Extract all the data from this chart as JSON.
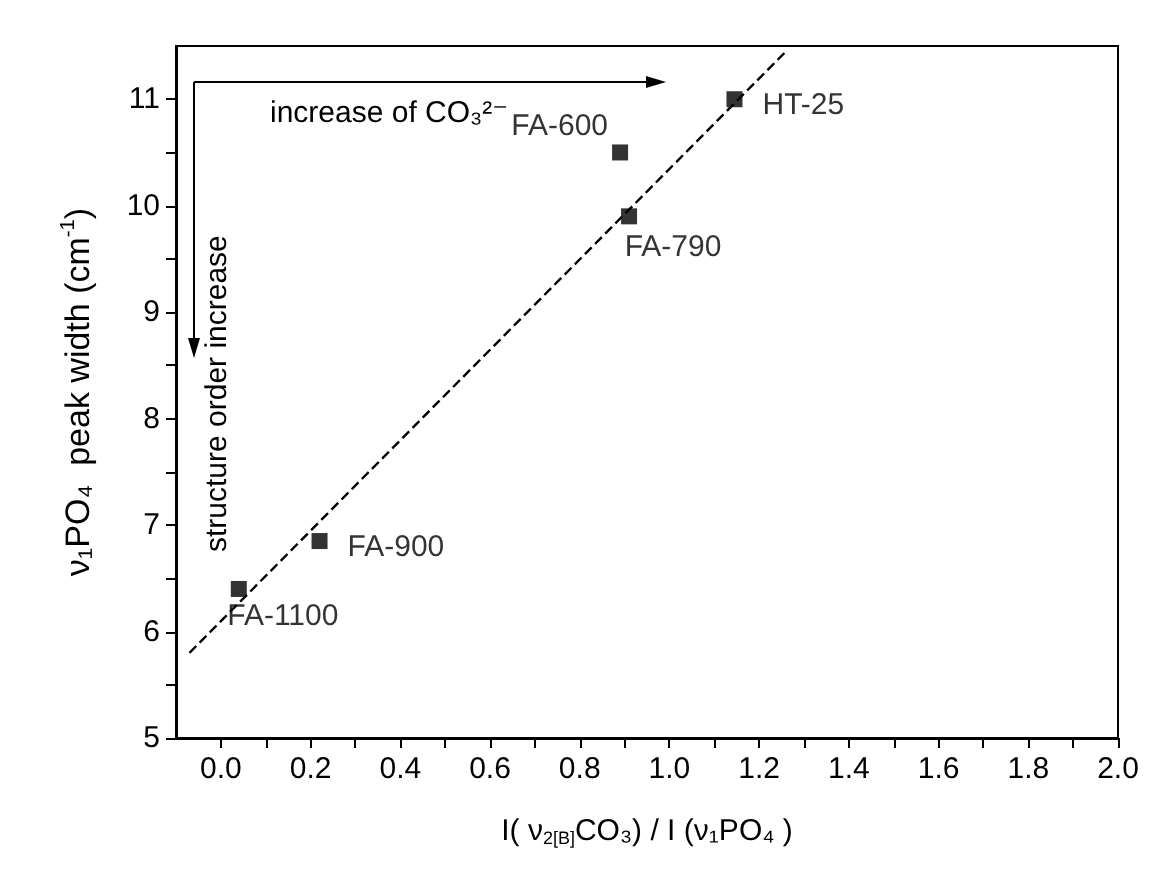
{
  "chart_data": {
    "type": "scatter",
    "xlabel": "I( ν$_{2[B]}$CO₃) / I (ν₁PO₄ )",
    "ylabel": "ν₁PO₄  peak width (cm$^{-1}$)",
    "xlim": [
      -0.1,
      2.0
    ],
    "ylim": [
      5,
      11.5
    ],
    "xticks": [
      {
        "value": 0.0,
        "label": "0.0"
      },
      {
        "value": 0.1,
        "label": null
      },
      {
        "value": 0.2,
        "label": "0.2"
      },
      {
        "value": 0.3,
        "label": null
      },
      {
        "value": 0.4,
        "label": "0.4"
      },
      {
        "value": 0.5,
        "label": null
      },
      {
        "value": 0.6,
        "label": "0.6"
      },
      {
        "value": 0.7,
        "label": null
      },
      {
        "value": 0.8,
        "label": "0.8"
      },
      {
        "value": 0.9,
        "label": null
      },
      {
        "value": 1.0,
        "label": "1.0"
      },
      {
        "value": 1.1,
        "label": null
      },
      {
        "value": 1.2,
        "label": "1.2"
      },
      {
        "value": 1.3,
        "label": null
      },
      {
        "value": 1.4,
        "label": "1.4"
      },
      {
        "value": 1.5,
        "label": null
      },
      {
        "value": 1.6,
        "label": "1.6"
      },
      {
        "value": 1.7,
        "label": null
      },
      {
        "value": 1.8,
        "label": "1.8"
      },
      {
        "value": 1.9,
        "label": null
      },
      {
        "value": 2.0,
        "label": "2.0"
      }
    ],
    "yticks": [
      5,
      {
        "value": 5.5,
        "label": null
      },
      6,
      {
        "value": 6.5,
        "label": null
      },
      7,
      {
        "value": 7.5,
        "label": null
      },
      8,
      {
        "value": 8.5,
        "label": null
      },
      9,
      {
        "value": 9.5,
        "label": null
      },
      10,
      {
        "value": 10.5,
        "label": null
      },
      11
    ],
    "marker": "square",
    "legend": false,
    "grid": false,
    "series": [
      {
        "name": "FA-1100",
        "color": "#000000",
        "x": [
          0.04
        ],
        "values": [
          6.4
        ]
      },
      {
        "name": "FA-900",
        "color": "#000000",
        "x": [
          0.22
        ],
        "values": [
          6.85
        ]
      },
      {
        "name": "FA-600",
        "color": "#000000",
        "x": [
          0.89
        ],
        "values": [
          10.5
        ]
      },
      {
        "name": "FA-790",
        "color": "#000000",
        "x": [
          0.91
        ],
        "values": [
          9.9
        ]
      },
      {
        "name": "HT-25",
        "color": "#000000",
        "x": [
          1.145
        ],
        "values": [
          11.0
        ]
      },
      {
        "type": "line",
        "color": "#000000",
        "line_style": "dashed",
        "marker": "none",
        "x": [
          -0.07,
          1.26
        ],
        "values": [
          5.8,
          11.45
        ]
      }
    ],
    "annotations": [
      "increase of CO₃²⁻",
      "structure order increase"
    ]
  }
}
